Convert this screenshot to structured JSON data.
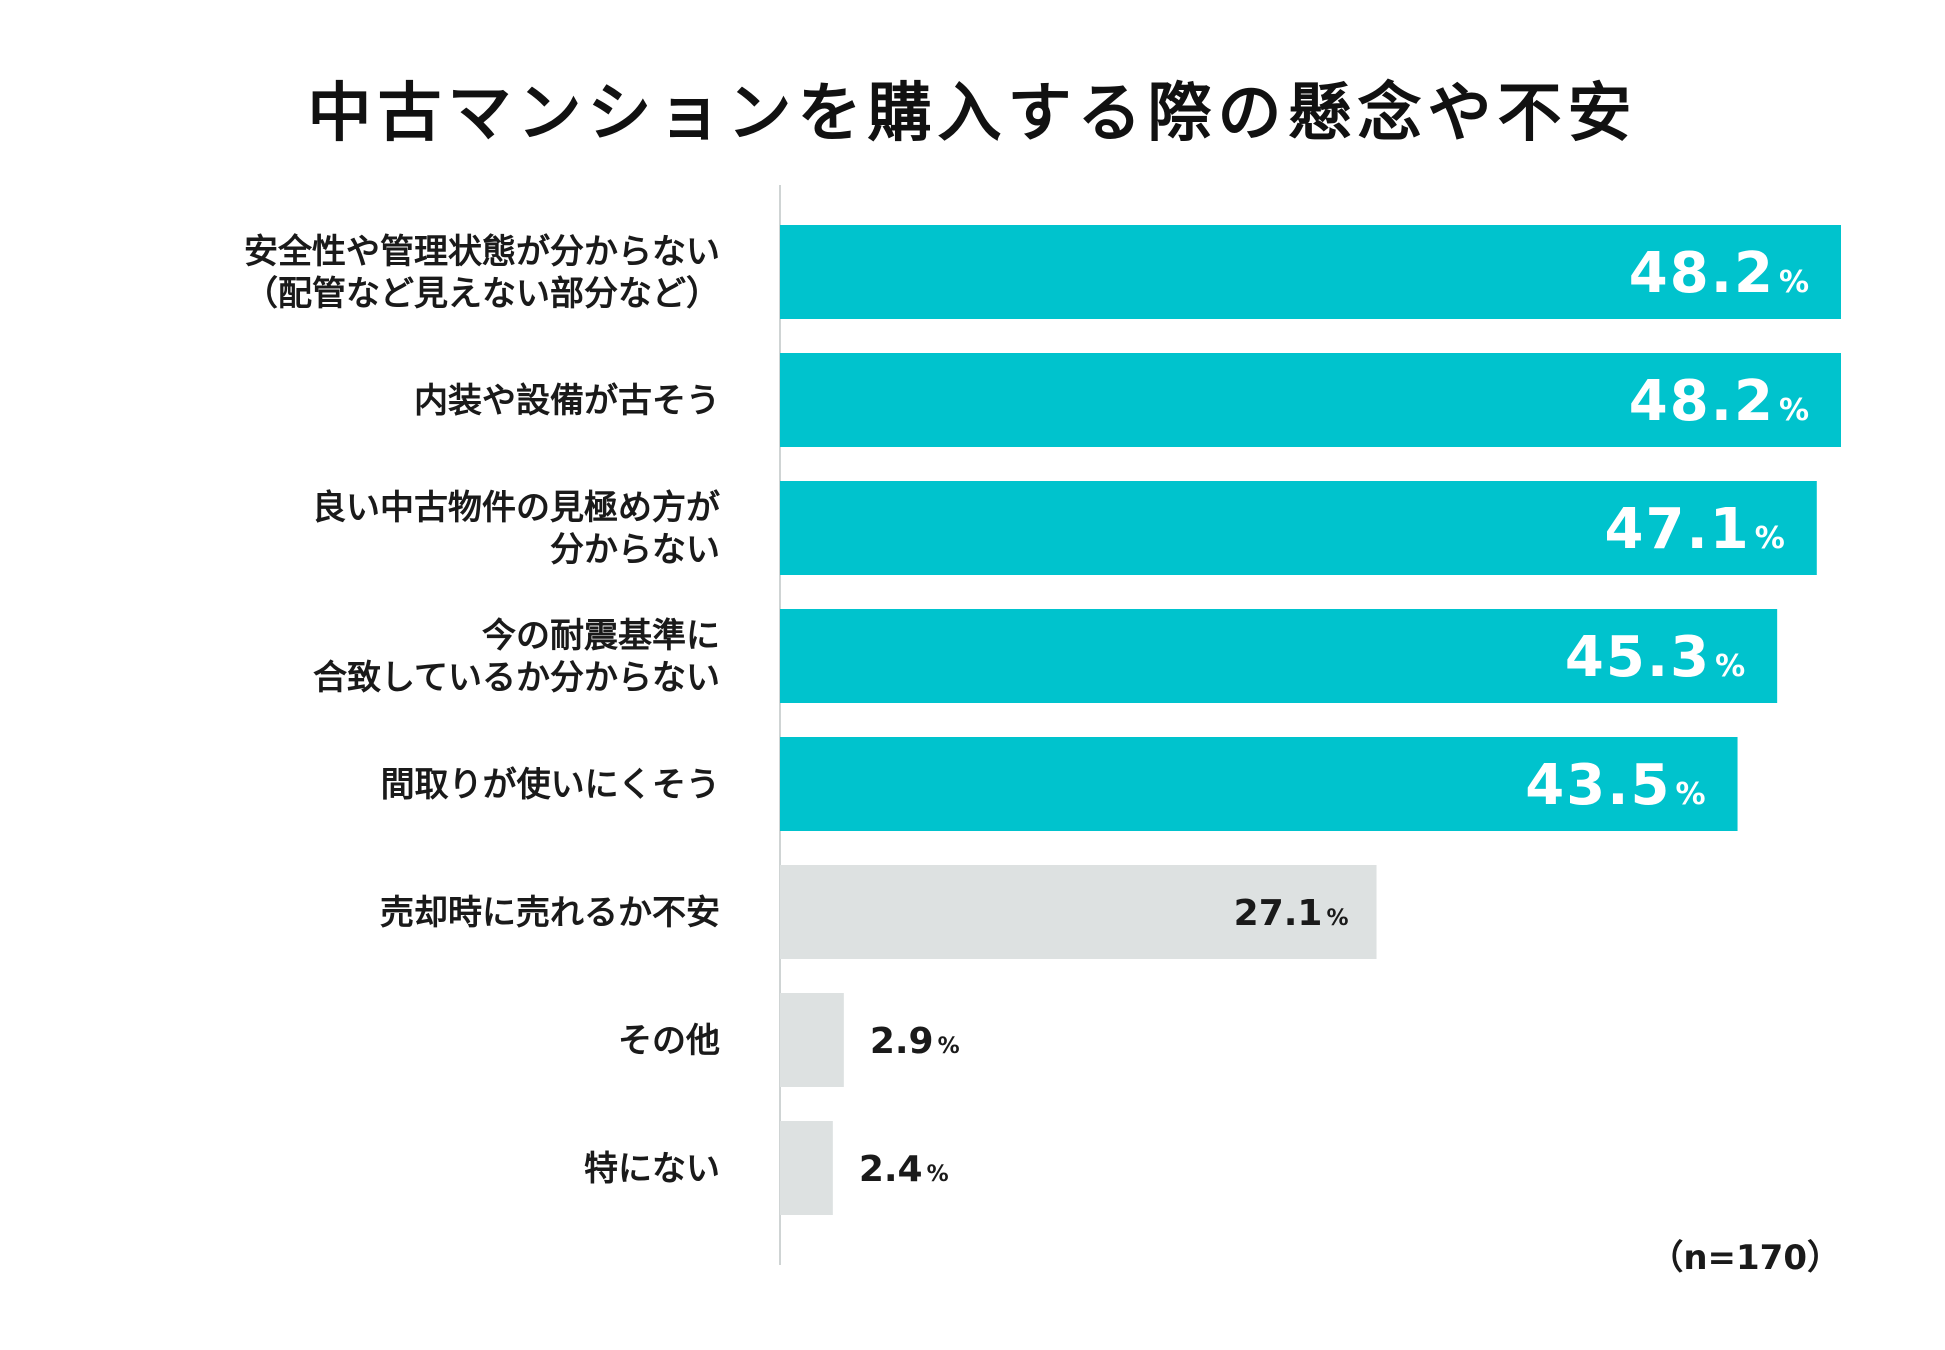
{
  "chart_data": {
    "type": "bar",
    "orientation": "horizontal",
    "title": "中古マンションを購入する際の懸念や不安",
    "note": "（n=170）",
    "unit": "%",
    "xlim": [
      0,
      48.2
    ],
    "categories": [
      [
        "安全性や管理状態が分からない",
        "（配管など見えない部分など）"
      ],
      [
        "内装や設備が古そう"
      ],
      [
        "良い中古物件の見極め方が",
        "分からない"
      ],
      [
        "今の耐震基準に",
        "合致しているか分からない"
      ],
      [
        "間取りが使いにくそう"
      ],
      [
        "売却時に売れるか不安"
      ],
      [
        "その他"
      ],
      [
        "特にない"
      ]
    ],
    "values": [
      48.2,
      48.2,
      47.1,
      45.3,
      43.5,
      27.1,
      2.9,
      2.4
    ],
    "value_labels": [
      "48.2",
      "48.2",
      "47.1",
      "45.3",
      "43.5",
      "27.1",
      "2.9",
      "2.4"
    ],
    "highlight": [
      true,
      true,
      true,
      true,
      true,
      false,
      false,
      false
    ],
    "colors": {
      "highlight_bar": "#00c3cd",
      "other_bar": "#dde1e1",
      "axis": "#cfd4d4",
      "highlight_text": "#ffffff",
      "other_text": "#1a1a1a"
    }
  }
}
